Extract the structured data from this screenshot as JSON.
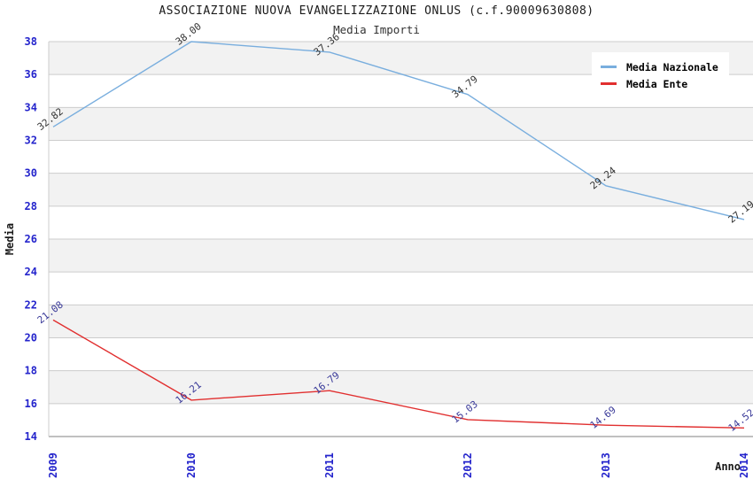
{
  "chart_data": {
    "type": "line",
    "title": "ASSOCIAZIONE NUOVA EVANGELIZZAZIONE ONLUS (c.f.90009630808)",
    "subtitle": "Media Importi",
    "xlabel": "Anno",
    "ylabel": "Media",
    "x": [
      "2009",
      "2010",
      "2011",
      "2012",
      "2013",
      "2014"
    ],
    "ylim": [
      14,
      38
    ],
    "ytick_step": 2,
    "grid": true,
    "legend_position": "top-right",
    "band_colors": [
      "#f2f2f2",
      "#ffffff"
    ],
    "gridline_color": "#cccccc",
    "axis_line_color": "#808080",
    "tick_label_color": "#2424cc",
    "axis_title_color": "#1a1a1a",
    "series": [
      {
        "name": "Media Nazionale",
        "color": "#79aede",
        "label_color": "#333333",
        "values": [
          32.82,
          38.0,
          37.36,
          34.79,
          29.24,
          27.19
        ]
      },
      {
        "name": "Media Ente",
        "color": "#e12f2f",
        "label_color": "#3a3a99",
        "values": [
          21.08,
          16.21,
          16.79,
          15.03,
          14.69,
          14.52
        ]
      }
    ]
  }
}
